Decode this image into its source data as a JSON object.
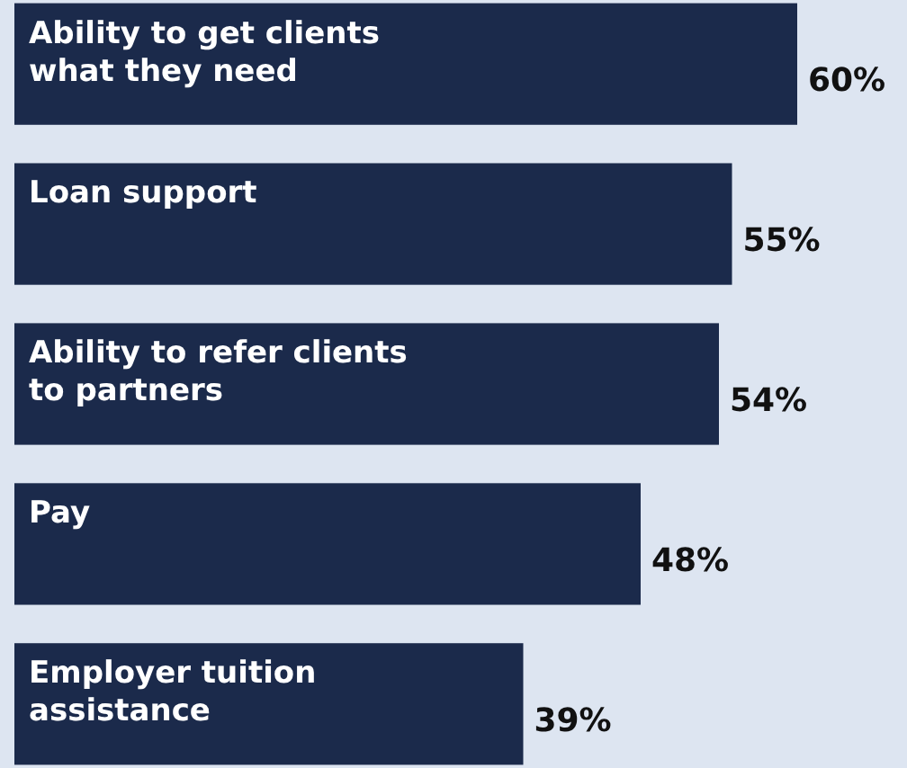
{
  "chart_data": {
    "type": "bar",
    "orientation": "horizontal",
    "categories": [
      "Ability to get clients what they need",
      "Loan support",
      "Ability to refer clients to partners",
      "Pay",
      "Employer tuition assistance"
    ],
    "values": [
      60,
      55,
      54,
      48,
      39
    ],
    "value_labels": [
      "60%",
      "55%",
      "54%",
      "48%",
      "39%"
    ],
    "color": "#1b2a4b"
  }
}
